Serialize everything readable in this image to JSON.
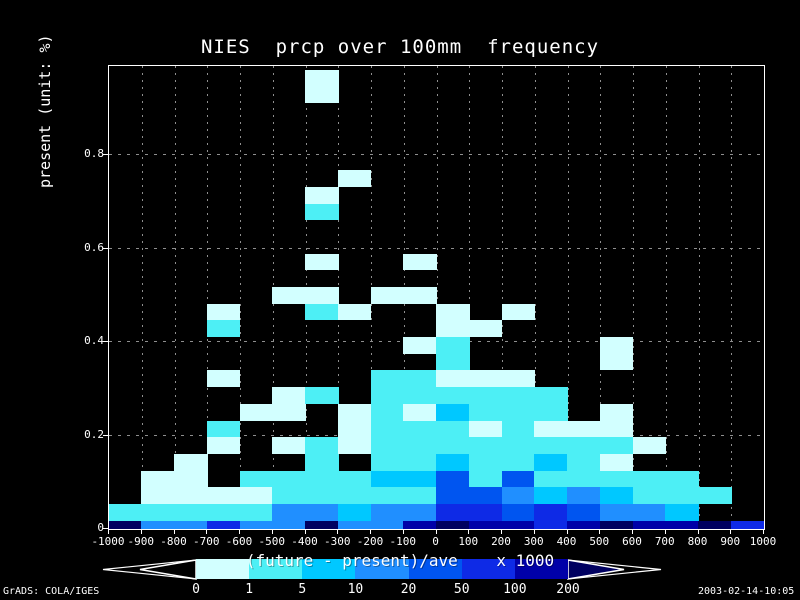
{
  "title": "NIES  prcp over 100mm  frequency",
  "y_axis": {
    "label": "present (unit: %)",
    "ticks": [
      "0",
      "0.2",
      "0.4",
      "0.6",
      "0.8"
    ],
    "tick_values": [
      0,
      0.2,
      0.4,
      0.6,
      0.8
    ]
  },
  "x_axis": {
    "ticks": [
      "-1000",
      "-900",
      "-800",
      "-700",
      "-600",
      "-500",
      "-400",
      "-300",
      "-200",
      "-100",
      "0",
      "100",
      "200",
      "300",
      "400",
      "500",
      "600",
      "700",
      "800",
      "900",
      "1000"
    ]
  },
  "legend": {
    "title": "(future - present)/ave    x 1000",
    "labels": [
      "0",
      "1",
      "5",
      "10",
      "20",
      "50",
      "100",
      "200"
    ]
  },
  "footer": {
    "left": "GrADS: COLA/IGES",
    "right": "2003-02-14-10:05"
  },
  "palette": {
    "a": "#d2ffff",
    "b": "#4deff5",
    "c": "#00c8ff",
    "d": "#208fff",
    "e": "#0055f0",
    "f": "#0e2ae6",
    "g": "#0000a8",
    "h": "#000060",
    "background": "#000000",
    "frame": "#ffffff",
    "grid": "#8f8f8f",
    "arrow_left_fill": "#000000",
    "arrow_right_fill": "#000060"
  },
  "chart_data": {
    "type": "heatmap",
    "title": "NIES  prcp over 100mm  frequency",
    "xlabel": "(future - present)/ave x 1000",
    "ylabel": "present (unit: %)",
    "x_range": [
      -1000,
      1000
    ],
    "x_bin_width": 100,
    "n_cols": 20,
    "y_range_shown": [
      0,
      0.99
    ],
    "y_bin_height": 0.0357,
    "grid": "dotted gray, x every 100, y every 0.2",
    "legend_position": "bottom",
    "levels": [
      {
        "code": "a",
        "range": "0-1"
      },
      {
        "code": "b",
        "range": "1-5"
      },
      {
        "code": "c",
        "range": "5-10"
      },
      {
        "code": "d",
        "range": "10-20"
      },
      {
        "code": "e",
        "range": "20-50"
      },
      {
        "code": "f",
        "range": "50-100"
      },
      {
        "code": "g",
        "range": "100-200"
      },
      {
        "code": "h",
        "range": ">200"
      }
    ],
    "rows": [
      {
        "k": 0,
        "y": 0.0,
        "cells": "hddfddhddghggfghgghf"
      },
      {
        "k": 1,
        "y": 0.0357,
        "cells": "bbbbbddcddffefeddc.."
      },
      {
        "k": 2,
        "y": 0.0714,
        "cells": ".aaaabbbbbeedcdcbbb."
      },
      {
        "k": 3,
        "y": 0.1071,
        "cells": ".aa.bbbbccebebbbbb.."
      },
      {
        "k": 4,
        "y": 0.1429,
        "cells": "..a...b.bbcbbcba...."
      },
      {
        "k": 5,
        "y": 0.1786,
        "cells": "...a.ababbbbbbbba..."
      },
      {
        "k": 6,
        "y": 0.2143,
        "cells": "...b...abbbabaaa...."
      },
      {
        "k": 7,
        "y": 0.25,
        "cells": "....aa.abacbbb.a...."
      },
      {
        "k": 8,
        "y": 0.2857,
        "cells": ".....ab.bbbbbb......"
      },
      {
        "k": 9,
        "y": 0.3214,
        "cells": "...a....bbaaa......."
      },
      {
        "k": 10,
        "y": 0.3571,
        "cells": "..........b....a...."
      },
      {
        "k": 11,
        "y": 0.3929,
        "cells": ".........ab....a...."
      },
      {
        "k": 12,
        "y": 0.4286,
        "cells": "...b......aa........"
      },
      {
        "k": 13,
        "y": 0.4643,
        "cells": "...a..ba..a.a......."
      },
      {
        "k": 14,
        "y": 0.5,
        "cells": ".....aa.aa.........."
      }
    ],
    "sparse_cells": [
      {
        "k": 16,
        "y": 0.5714,
        "c": 6,
        "level": "a"
      },
      {
        "k": 16,
        "y": 0.5714,
        "c": 9,
        "level": "a"
      },
      {
        "k": 19,
        "y": 0.6786,
        "c": 6,
        "level": "b"
      },
      {
        "k": 20,
        "y": 0.7143,
        "c": 6,
        "level": "a"
      },
      {
        "k": 21,
        "y": 0.75,
        "c": 7,
        "level": "a"
      },
      {
        "k": 26,
        "y": 0.9286,
        "c": 6,
        "level": "a"
      },
      {
        "k": 27,
        "y": 0.9643,
        "c": 6,
        "level": "a"
      }
    ]
  }
}
